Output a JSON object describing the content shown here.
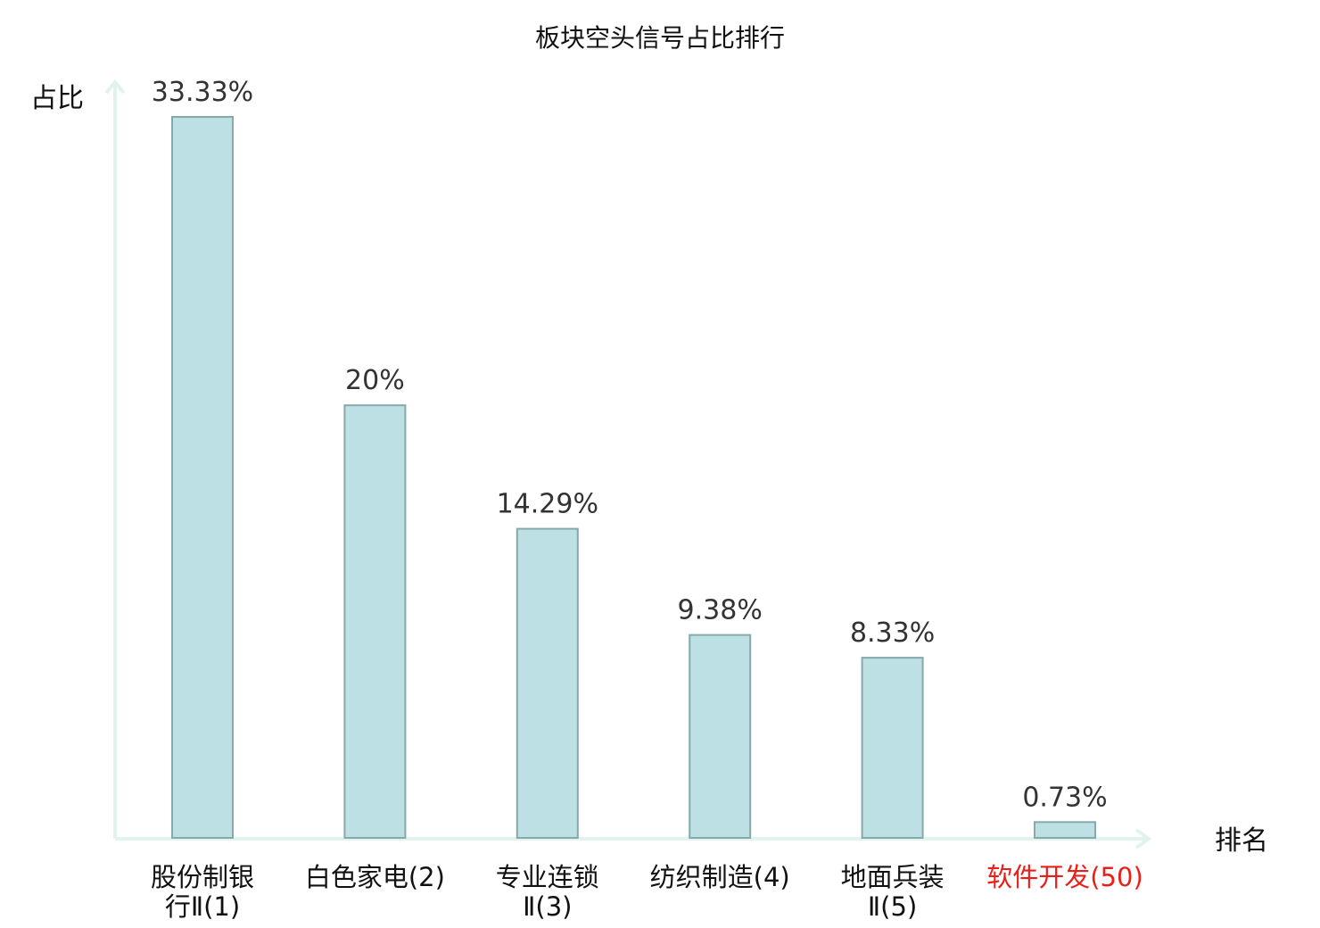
{
  "chart_data": {
    "type": "bar",
    "title": "板块空头信号占比排行",
    "ylabel": "占比",
    "xlabel": "排名",
    "ylim": [
      0,
      36
    ],
    "categories": [
      [
        "股份制银",
        "行Ⅱ(1)"
      ],
      [
        "白色家电(2)"
      ],
      [
        "专业连锁",
        "Ⅱ(3)"
      ],
      [
        "纺织制造(4)"
      ],
      [
        "地面兵装",
        "Ⅱ(5)"
      ],
      [
        "软件开发(50)"
      ]
    ],
    "values": [
      33.33,
      20,
      14.29,
      9.38,
      8.33,
      0.73
    ],
    "value_labels": [
      "33.33%",
      "20%",
      "14.29%",
      "9.38%",
      "8.33%",
      "0.73%"
    ],
    "highlight_index": 5,
    "grid": false,
    "legend": "none",
    "colors": {
      "bar_fill": "#bce0e3",
      "bar_stroke": "#86a9aa",
      "axis": "#e2f3ef",
      "label_default": "#111111",
      "label_highlight": "#e8201a"
    }
  }
}
